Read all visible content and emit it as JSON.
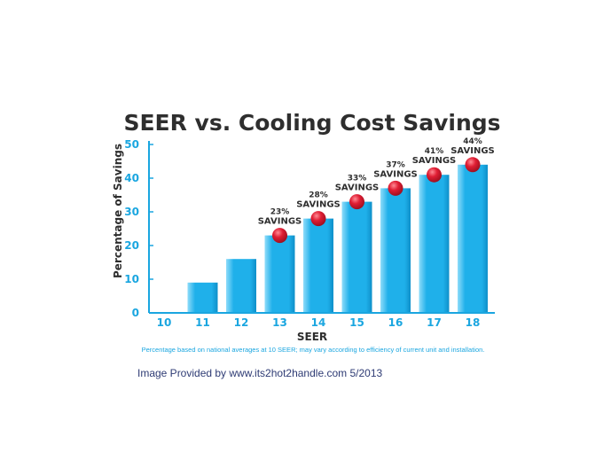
{
  "chart_data": {
    "type": "bar",
    "title": "SEER vs. Cooling Cost Savings",
    "xlabel": "SEER",
    "ylabel": "Percentage of Savings",
    "categories": [
      "10",
      "11",
      "12",
      "13",
      "14",
      "15",
      "16",
      "17",
      "18"
    ],
    "values": [
      0,
      9,
      16,
      23,
      28,
      33,
      37,
      41,
      44
    ],
    "ylim": [
      0,
      50
    ],
    "yticks": [
      0,
      10,
      20,
      30,
      40,
      50
    ],
    "grid": false,
    "annotations": [
      {
        "category": "13",
        "percent": "23%",
        "word": "SAVINGS"
      },
      {
        "category": "14",
        "percent": "28%",
        "word": "SAVINGS"
      },
      {
        "category": "15",
        "percent": "33%",
        "word": "SAVINGS"
      },
      {
        "category": "16",
        "percent": "37%",
        "word": "SAVINGS"
      },
      {
        "category": "17",
        "percent": "41%",
        "word": "SAVINGS"
      },
      {
        "category": "18",
        "percent": "44%",
        "word": "SAVINGS"
      }
    ],
    "footnote": "Percentage based on national averages at 10 SEER; may vary according to efficiency of current unit and installation.",
    "colors": {
      "bar_light": "#8fdcfa",
      "bar_main": "#1fb0ea",
      "bar_dark": "#0e8fc9",
      "axis": "#1aa6e0",
      "marker_light": "#ff8a94",
      "marker_main": "#e01e34",
      "marker_dark": "#9e0f1f"
    }
  },
  "credit": "Image Provided by www.its2hot2handle.com 5/2013"
}
